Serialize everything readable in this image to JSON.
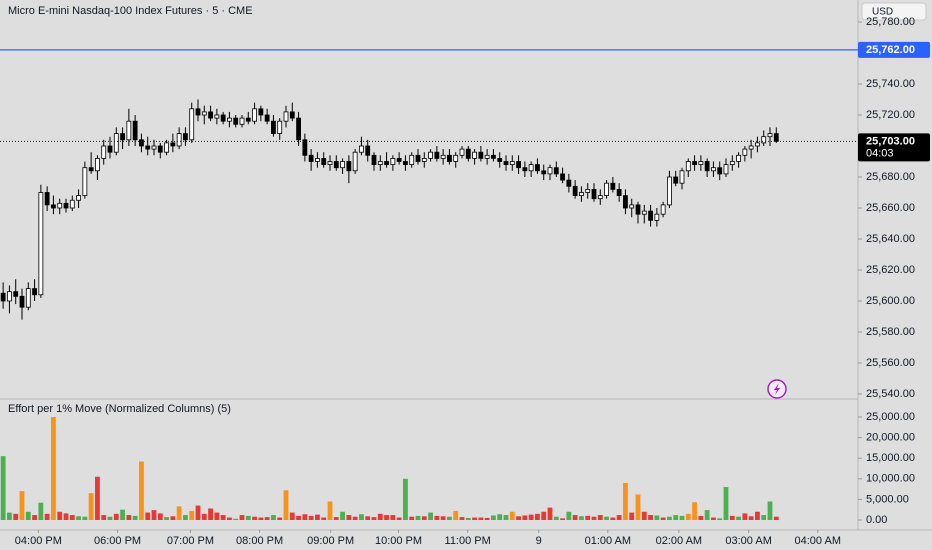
{
  "header": {
    "title": "Micro E-mini Nasdaq-100 Index Futures · 5 · CME",
    "currency": "USD"
  },
  "chart_data": [
    {
      "type": "candlestick",
      "up_color": "#ffffff",
      "down_color": "#000000",
      "xlim": [
        -0.5,
        136
      ],
      "ylim": [
        25537.4,
        25794.2
      ],
      "xticks": [
        {
          "value": 5.6,
          "label": "04:00 PM"
        },
        {
          "value": 18.2,
          "label": "06:00 PM"
        },
        {
          "value": 29.8,
          "label": "07:00 PM"
        },
        {
          "value": 40.8,
          "label": "08:00 PM"
        },
        {
          "value": 52.1,
          "label": "09:00 PM"
        },
        {
          "value": 62.9,
          "label": "10:00 PM"
        },
        {
          "value": 73.9,
          "label": "11:00 PM"
        },
        {
          "value": 85.2,
          "label": "9"
        },
        {
          "value": 96.2,
          "label": "01:00 AM"
        },
        {
          "value": 107.5,
          "label": "02:00 AM"
        },
        {
          "value": 118.6,
          "label": "03:00 AM"
        },
        {
          "value": 129.6,
          "label": "04:00 AM"
        }
      ],
      "yticks": [
        {
          "value": 25540,
          "label": "25,540.00"
        },
        {
          "value": 25560,
          "label": "25,560.00"
        },
        {
          "value": 25580,
          "label": "25,580.00"
        },
        {
          "value": 25600,
          "label": "25,600.00"
        },
        {
          "value": 25620,
          "label": "25,620.00"
        },
        {
          "value": 25640,
          "label": "25,640.00"
        },
        {
          "value": 25660,
          "label": "25,660.00"
        },
        {
          "value": 25680,
          "label": "25,680.00"
        },
        {
          "value": 25700,
          "label": "25,700.00"
        },
        {
          "value": 25720,
          "label": "25,720.00"
        },
        {
          "value": 25740,
          "label": "25,740.00"
        },
        {
          "value": 25760,
          "label": "25,760.00"
        },
        {
          "value": 25780,
          "label": "25,780.00"
        }
      ],
      "lines": [
        {
          "value": 25762,
          "label": "25,762.00",
          "color": "#2962ff"
        }
      ],
      "last_price": {
        "value": 25703,
        "label": "25,703.00",
        "countdown": "04:03"
      },
      "candles": [
        [
          25605,
          25612,
          25595,
          25600
        ],
        [
          25600,
          25610,
          25592,
          25606
        ],
        [
          25606,
          25614,
          25598,
          25603
        ],
        [
          25603,
          25608,
          25588,
          25596
        ],
        [
          25596,
          25612,
          25594,
          25608
        ],
        [
          25608,
          25614,
          25600,
          25604
        ],
        [
          25604,
          25675,
          25602,
          25670
        ],
        [
          25670,
          25674,
          25658,
          25662
        ],
        [
          25662,
          25668,
          25656,
          25660
        ],
        [
          25660,
          25666,
          25656,
          25663
        ],
        [
          25663,
          25666,
          25657,
          25660
        ],
        [
          25660,
          25668,
          25658,
          25665
        ],
        [
          25665,
          25672,
          25660,
          25668
        ],
        [
          25668,
          25690,
          25666,
          25686
        ],
        [
          25686,
          25696,
          25682,
          25684
        ],
        [
          25684,
          25694,
          25678,
          25692
        ],
        [
          25692,
          25704,
          25688,
          25700
        ],
        [
          25700,
          25706,
          25692,
          25696
        ],
        [
          25696,
          25712,
          25694,
          25708
        ],
        [
          25708,
          25712,
          25698,
          25704
        ],
        [
          25704,
          25724,
          25700,
          25716
        ],
        [
          25716,
          25720,
          25700,
          25704
        ],
        [
          25704,
          25708,
          25696,
          25700
        ],
        [
          25700,
          25706,
          25694,
          25698
        ],
        [
          25698,
          25704,
          25694,
          25700
        ],
        [
          25700,
          25702,
          25692,
          25696
        ],
        [
          25696,
          25704,
          25694,
          25702
        ],
        [
          25702,
          25708,
          25696,
          25700
        ],
        [
          25700,
          25712,
          25698,
          25708
        ],
        [
          25708,
          25712,
          25700,
          25704
        ],
        [
          25704,
          25728,
          25702,
          25724
        ],
        [
          25724,
          25730,
          25716,
          25720
        ],
        [
          25720,
          25726,
          25714,
          25722
        ],
        [
          25722,
          25726,
          25716,
          25718
        ],
        [
          25718,
          25724,
          25714,
          25720
        ],
        [
          25720,
          25722,
          25714,
          25716
        ],
        [
          25716,
          25722,
          25712,
          25718
        ],
        [
          25718,
          25720,
          25712,
          25714
        ],
        [
          25714,
          25720,
          25712,
          25718
        ],
        [
          25718,
          25722,
          25714,
          25716
        ],
        [
          25716,
          25728,
          25714,
          25724
        ],
        [
          25724,
          25726,
          25716,
          25720
        ],
        [
          25720,
          25724,
          25714,
          25716
        ],
        [
          25716,
          25720,
          25706,
          25708
        ],
        [
          25708,
          25718,
          25704,
          25716
        ],
        [
          25716,
          25726,
          25712,
          25722
        ],
        [
          25722,
          25728,
          25716,
          25718
        ],
        [
          25718,
          25722,
          25700,
          25704
        ],
        [
          25704,
          25708,
          25690,
          25694
        ],
        [
          25694,
          25698,
          25684,
          25690
        ],
        [
          25690,
          25696,
          25686,
          25692
        ],
        [
          25692,
          25696,
          25686,
          25688
        ],
        [
          25688,
          25694,
          25684,
          25690
        ],
        [
          25690,
          25694,
          25684,
          25686
        ],
        [
          25686,
          25692,
          25682,
          25690
        ],
        [
          25690,
          25694,
          25676,
          25684
        ],
        [
          25684,
          25698,
          25682,
          25696
        ],
        [
          25696,
          25706,
          25694,
          25700
        ],
        [
          25700,
          25704,
          25690,
          25694
        ],
        [
          25694,
          25696,
          25684,
          25688
        ],
        [
          25688,
          25694,
          25684,
          25690
        ],
        [
          25690,
          25696,
          25686,
          25688
        ],
        [
          25688,
          25694,
          25684,
          25692
        ],
        [
          25692,
          25696,
          25688,
          25690
        ],
        [
          25690,
          25694,
          25684,
          25688
        ],
        [
          25688,
          25696,
          25686,
          25694
        ],
        [
          25694,
          25698,
          25688,
          25690
        ],
        [
          25690,
          25696,
          25686,
          25692
        ],
        [
          25692,
          25698,
          25690,
          25696
        ],
        [
          25696,
          25700,
          25690,
          25692
        ],
        [
          25692,
          25698,
          25688,
          25694
        ],
        [
          25694,
          25698,
          25688,
          25690
        ],
        [
          25690,
          25696,
          25686,
          25694
        ],
        [
          25694,
          25700,
          25692,
          25698
        ],
        [
          25698,
          25700,
          25690,
          25692
        ],
        [
          25692,
          25698,
          25688,
          25696
        ],
        [
          25696,
          25700,
          25690,
          25692
        ],
        [
          25692,
          25698,
          25688,
          25694
        ],
        [
          25694,
          25698,
          25690,
          25692
        ],
        [
          25692,
          25696,
          25686,
          25690
        ],
        [
          25690,
          25694,
          25684,
          25688
        ],
        [
          25688,
          25694,
          25684,
          25690
        ],
        [
          25690,
          25694,
          25682,
          25686
        ],
        [
          25686,
          25690,
          25680,
          25684
        ],
        [
          25684,
          25690,
          25680,
          25688
        ],
        [
          25688,
          25692,
          25682,
          25684
        ],
        [
          25684,
          25688,
          25678,
          25682
        ],
        [
          25682,
          25688,
          25678,
          25686
        ],
        [
          25686,
          25690,
          25680,
          25682
        ],
        [
          25682,
          25686,
          25676,
          25678
        ],
        [
          25678,
          25682,
          25670,
          25674
        ],
        [
          25674,
          25678,
          25666,
          25668
        ],
        [
          25668,
          25674,
          25664,
          25670
        ],
        [
          25670,
          25676,
          25666,
          25672
        ],
        [
          25672,
          25676,
          25664,
          25666
        ],
        [
          25666,
          25672,
          25662,
          25668
        ],
        [
          25668,
          25678,
          25666,
          25676
        ],
        [
          25676,
          25680,
          25670,
          25672
        ],
        [
          25672,
          25676,
          25664,
          25668
        ],
        [
          25668,
          25672,
          25656,
          25660
        ],
        [
          25660,
          25666,
          25654,
          25662
        ],
        [
          25662,
          25664,
          25650,
          25656
        ],
        [
          25656,
          25662,
          25650,
          25658
        ],
        [
          25658,
          25662,
          25648,
          25652
        ],
        [
          25652,
          25660,
          25648,
          25656
        ],
        [
          25656,
          25664,
          25654,
          25662
        ],
        [
          25662,
          25684,
          25660,
          25680
        ],
        [
          25680,
          25684,
          25674,
          25676
        ],
        [
          25676,
          25686,
          25672,
          25684
        ],
        [
          25684,
          25692,
          25680,
          25690
        ],
        [
          25690,
          25694,
          25684,
          25688
        ],
        [
          25688,
          25694,
          25684,
          25690
        ],
        [
          25690,
          25692,
          25680,
          25684
        ],
        [
          25684,
          25690,
          25680,
          25686
        ],
        [
          25686,
          25690,
          25678,
          25682
        ],
        [
          25682,
          25692,
          25680,
          25688
        ],
        [
          25688,
          25694,
          25684,
          25690
        ],
        [
          25690,
          25696,
          25686,
          25694
        ],
        [
          25694,
          25700,
          25690,
          25698
        ],
        [
          25698,
          25704,
          25692,
          25700
        ],
        [
          25700,
          25706,
          25696,
          25702
        ],
        [
          25702,
          25710,
          25700,
          25706
        ],
        [
          25706,
          25712,
          25700,
          25708
        ],
        [
          25708,
          25712,
          25702,
          25703
        ]
      ]
    },
    {
      "type": "bar",
      "title": "Effort per 1% Move (Normalized Columns) (5)",
      "ylim": [
        -1942,
        29126
      ],
      "yticks": [
        {
          "value": 0,
          "label": "0.00"
        },
        {
          "value": 5000,
          "label": "5,000.00"
        },
        {
          "value": 10000,
          "label": "10,000.00"
        },
        {
          "value": 15000,
          "label": "15,000.00"
        },
        {
          "value": 20000,
          "label": "20,000.00"
        },
        {
          "value": 25000,
          "label": "25,000.00"
        }
      ],
      "values": [
        15500,
        1800,
        1500,
        7000,
        2000,
        1200,
        4200,
        1500,
        25000,
        2000,
        1600,
        1200,
        900,
        800,
        6500,
        10500,
        1200,
        800,
        1500,
        2500,
        1200,
        1000,
        14200,
        1800,
        2400,
        1600,
        700,
        900,
        3300,
        1200,
        2200,
        3500,
        1500,
        2800,
        1800,
        1200,
        600,
        300,
        1200,
        1000,
        800,
        600,
        700,
        1200,
        600,
        7200,
        1800,
        1000,
        1400,
        1000,
        1300,
        600,
        4500,
        700,
        2000,
        1200,
        800,
        1400,
        900,
        700,
        1500,
        1200,
        1200,
        600,
        10000,
        800,
        1000,
        900,
        1800,
        1000,
        900,
        800,
        2200,
        700,
        500,
        600,
        600,
        500,
        1100,
        1400,
        1200,
        2000,
        900,
        1100,
        1300,
        1500,
        2000,
        3000,
        800,
        400,
        2000,
        1200,
        900,
        1000,
        800,
        1200,
        800,
        600,
        1200,
        9000,
        1800,
        6200,
        2000,
        1200,
        1100,
        600,
        800,
        1200,
        1000,
        1500,
        4300,
        1000,
        2400,
        600,
        400,
        8000,
        1000,
        800,
        1600,
        900,
        2000,
        1200,
        4500,
        800
      ],
      "colors": [
        "#4caf50",
        "#4caf50",
        "#e53935",
        "#f7931a",
        "#4caf50",
        "#e53935",
        "#4caf50",
        "#e53935",
        "#f7931a",
        "#e53935",
        "#e53935",
        "#e53935",
        "#4caf50",
        "#4caf50",
        "#f7931a",
        "#e53935",
        "#e53935",
        "#4caf50",
        "#e53935",
        "#4caf50",
        "#e53935",
        "#4caf50",
        "#f7931a",
        "#e53935",
        "#e53935",
        "#e53935",
        "#4caf50",
        "#e53935",
        "#f7931a",
        "#4caf50",
        "#f7931a",
        "#e53935",
        "#e53935",
        "#e53935",
        "#e53935",
        "#e53935",
        "#e53935",
        "#4caf50",
        "#e53935",
        "#4caf50",
        "#e53935",
        "#e53935",
        "#e53935",
        "#4caf50",
        "#e53935",
        "#f7931a",
        "#e53935",
        "#e53935",
        "#e53935",
        "#e53935",
        "#e53935",
        "#e53935",
        "#f7931a",
        "#e53935",
        "#4caf50",
        "#e53935",
        "#e53935",
        "#4caf50",
        "#e53935",
        "#e53935",
        "#e53935",
        "#e53935",
        "#e53935",
        "#e53935",
        "#4caf50",
        "#e53935",
        "#4caf50",
        "#e53935",
        "#4caf50",
        "#e53935",
        "#e53935",
        "#4caf50",
        "#f7931a",
        "#e53935",
        "#4caf50",
        "#e53935",
        "#e53935",
        "#e53935",
        "#4caf50",
        "#4caf50",
        "#4caf50",
        "#f7931a",
        "#e53935",
        "#e53935",
        "#e53935",
        "#e53935",
        "#e53935",
        "#e53935",
        "#4caf50",
        "#e53935",
        "#4caf50",
        "#e53935",
        "#4caf50",
        "#e53935",
        "#e53935",
        "#e53935",
        "#4caf50",
        "#e53935",
        "#e53935",
        "#f7931a",
        "#e53935",
        "#f7931a",
        "#e53935",
        "#e53935",
        "#4caf50",
        "#e53935",
        "#4caf50",
        "#4caf50",
        "#4caf50",
        "#f7931a",
        "#f7931a",
        "#e53935",
        "#4caf50",
        "#e53935",
        "#4caf50",
        "#4caf50",
        "#e53935",
        "#4caf50",
        "#e53935",
        "#e53935",
        "#e53935",
        "#4caf50",
        "#4caf50",
        "#e53935"
      ]
    }
  ]
}
